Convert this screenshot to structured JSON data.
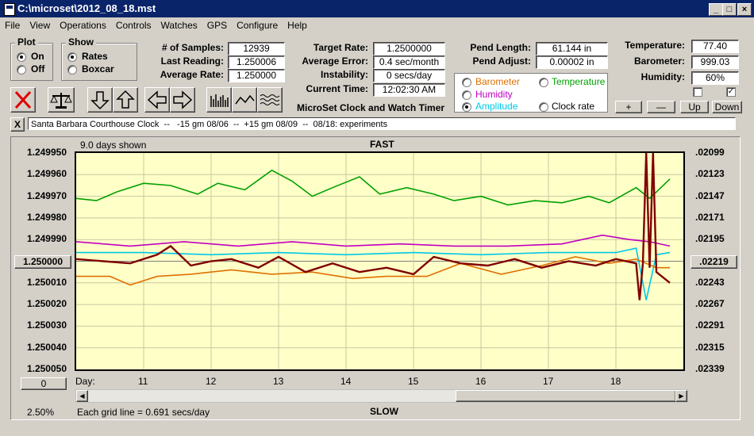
{
  "window": {
    "title": "C:\\microset\\2012_08_18.mst"
  },
  "menu": [
    "File",
    "View",
    "Operations",
    "Controls",
    "Watches",
    "GPS",
    "Configure",
    "Help"
  ],
  "plot_group": {
    "label": "Plot",
    "on": "On",
    "off": "Off",
    "selected": "On"
  },
  "show_group": {
    "label": "Show",
    "rates": "Rates",
    "boxcar": "Boxcar",
    "selected": "Rates"
  },
  "stats": {
    "samples_label": "# of Samples:",
    "samples": "12939",
    "last_label": "Last Reading:",
    "last": "1.250006",
    "avg_label": "Average Rate:",
    "avg": "1.250000",
    "target_label": "Target Rate:",
    "target": "1.2500000",
    "avgerr_label": "Average Error:",
    "avgerr": "0.4 sec/month",
    "instab_label": "Instability:",
    "instab": "0 secs/day",
    "time_label": "Current Time:",
    "time": "12:02:30 AM",
    "app_name": "MicroSet Clock and Watch Timer",
    "pend_len_label": "Pend Length:",
    "pend_len": "61.144 in",
    "pend_adj_label": "Pend Adjust:",
    "pend_adj": "0.00002 in",
    "temp_label": "Temperature:",
    "temp": "77.40",
    "baro_label": "Barometer:",
    "baro": "999.03",
    "hum_label": "Humidity:",
    "hum": "60%"
  },
  "sensor_options": [
    {
      "label": "Barometer",
      "color": "#e07000"
    },
    {
      "label": "Temperature",
      "color": "#00a000"
    },
    {
      "label": "Humidity",
      "color": "#c000c0"
    },
    {
      "label": "Amplitude",
      "color": "#00c8e8"
    },
    {
      "label": "Clock rate",
      "color": "#000000"
    }
  ],
  "sensor_selected": "Amplitude",
  "step_buttons": {
    "plus": "+",
    "minus": "—",
    "up": "Up",
    "down": "Down"
  },
  "comment": "Santa Barbara Courthouse Clock  --   -15 gm 08/06  --  +15 gm 08/09  --  08/18: experiments",
  "close_x": "X",
  "graph": {
    "days_shown": "9.0 days shown",
    "top_label": "FAST",
    "bottom_label": "SLOW",
    "day_label": "Day:",
    "grid_note": "Each grid line = 0.691 secs/day",
    "zoom": "2.50%",
    "left_box": "1.250000",
    "right_box": ".02219",
    "scroll_box": "0",
    "y_left": [
      "1.249950",
      "1.249960",
      "1.249970",
      "1.249980",
      "1.249990",
      "1.250000",
      "1.250010",
      "1.250020",
      "1.250030",
      "1.250040",
      "1.250050"
    ],
    "y_right": [
      ".02099",
      ".02123",
      ".02147",
      ".02171",
      ".02195",
      ".02219",
      ".02243",
      ".02267",
      ".02291",
      ".02315",
      ".02339"
    ],
    "x_days": [
      "11",
      "12",
      "13",
      "14",
      "15",
      "16",
      "17",
      "18"
    ]
  },
  "chart_data": {
    "type": "line",
    "y_left_range": [
      1.24995,
      1.25005
    ],
    "y_right_range": [
      0.02099,
      0.02339
    ],
    "x_range_days": [
      10.0,
      19.0
    ],
    "series": [
      {
        "color": "#00a000",
        "x": [
          10.0,
          10.3,
          10.6,
          11.0,
          11.4,
          11.8,
          12.1,
          12.5,
          12.9,
          13.2,
          13.5,
          13.8,
          14.2,
          14.5,
          14.9,
          15.3,
          15.6,
          16.0,
          16.4,
          16.8,
          17.2,
          17.6,
          17.9,
          18.3,
          18.5,
          18.8
        ],
        "y": [
          1.249971,
          1.249972,
          1.249968,
          1.249964,
          1.249965,
          1.249969,
          1.249964,
          1.249967,
          1.249958,
          1.249963,
          1.24997,
          1.249966,
          1.249961,
          1.249969,
          1.249966,
          1.249969,
          1.249972,
          1.24997,
          1.249974,
          1.249972,
          1.249973,
          1.24997,
          1.249973,
          1.249966,
          1.249971,
          1.249962
        ]
      },
      {
        "color": "#c000c0",
        "x": [
          10.0,
          10.8,
          11.6,
          12.4,
          13.2,
          14.0,
          14.8,
          15.6,
          16.4,
          17.2,
          17.8,
          18.2,
          18.5,
          18.8
        ],
        "y": [
          1.249991,
          1.249993,
          1.249991,
          1.249993,
          1.249991,
          1.249993,
          1.249992,
          1.249993,
          1.249993,
          1.249992,
          1.249988,
          1.24999,
          1.249991,
          1.249993
        ]
      },
      {
        "color": "#00c8e8",
        "x": [
          10.0,
          11.0,
          12.0,
          13.0,
          14.0,
          15.0,
          16.0,
          17.0,
          18.0,
          18.3,
          18.45,
          18.6,
          18.8
        ],
        "y": [
          1.249996,
          1.249996,
          1.249997,
          1.249996,
          1.249997,
          1.249996,
          1.249997,
          1.249996,
          1.249996,
          1.249994,
          1.250018,
          1.249997,
          1.249996
        ]
      },
      {
        "color": "#e07000",
        "x": [
          10.0,
          10.5,
          10.8,
          11.2,
          11.7,
          12.3,
          12.9,
          13.5,
          14.1,
          14.6,
          15.2,
          15.7,
          16.3,
          16.9,
          17.4,
          17.9,
          18.3,
          18.6,
          18.8
        ],
        "y": [
          1.250007,
          1.250007,
          1.250011,
          1.250007,
          1.250006,
          1.250004,
          1.250006,
          1.250005,
          1.250008,
          1.250007,
          1.250007,
          1.250001,
          1.250006,
          1.250002,
          1.249998,
          1.250001,
          1.249999,
          1.250003,
          1.250003
        ]
      },
      {
        "color": "#800000",
        "x": [
          10.0,
          10.4,
          10.8,
          11.2,
          11.4,
          11.7,
          12.0,
          12.3,
          12.7,
          13.0,
          13.4,
          13.8,
          14.2,
          14.6,
          15.0,
          15.3,
          15.7,
          16.1,
          16.5,
          16.9,
          17.3,
          17.7,
          18.0,
          18.3,
          18.35,
          18.4,
          18.45,
          18.5,
          18.55,
          18.6,
          18.8
        ],
        "y": [
          1.249999,
          1.25,
          1.250001,
          1.249997,
          1.249993,
          1.250002,
          1.25,
          1.249999,
          1.250003,
          1.249998,
          1.250005,
          1.250001,
          1.250005,
          1.250003,
          1.250006,
          1.249998,
          1.250001,
          1.250002,
          1.249999,
          1.250003,
          1.25,
          1.250002,
          1.249999,
          1.250001,
          1.250018,
          1.250001,
          1.24995,
          1.250003,
          1.24995,
          1.250005,
          1.25001
        ]
      }
    ]
  }
}
